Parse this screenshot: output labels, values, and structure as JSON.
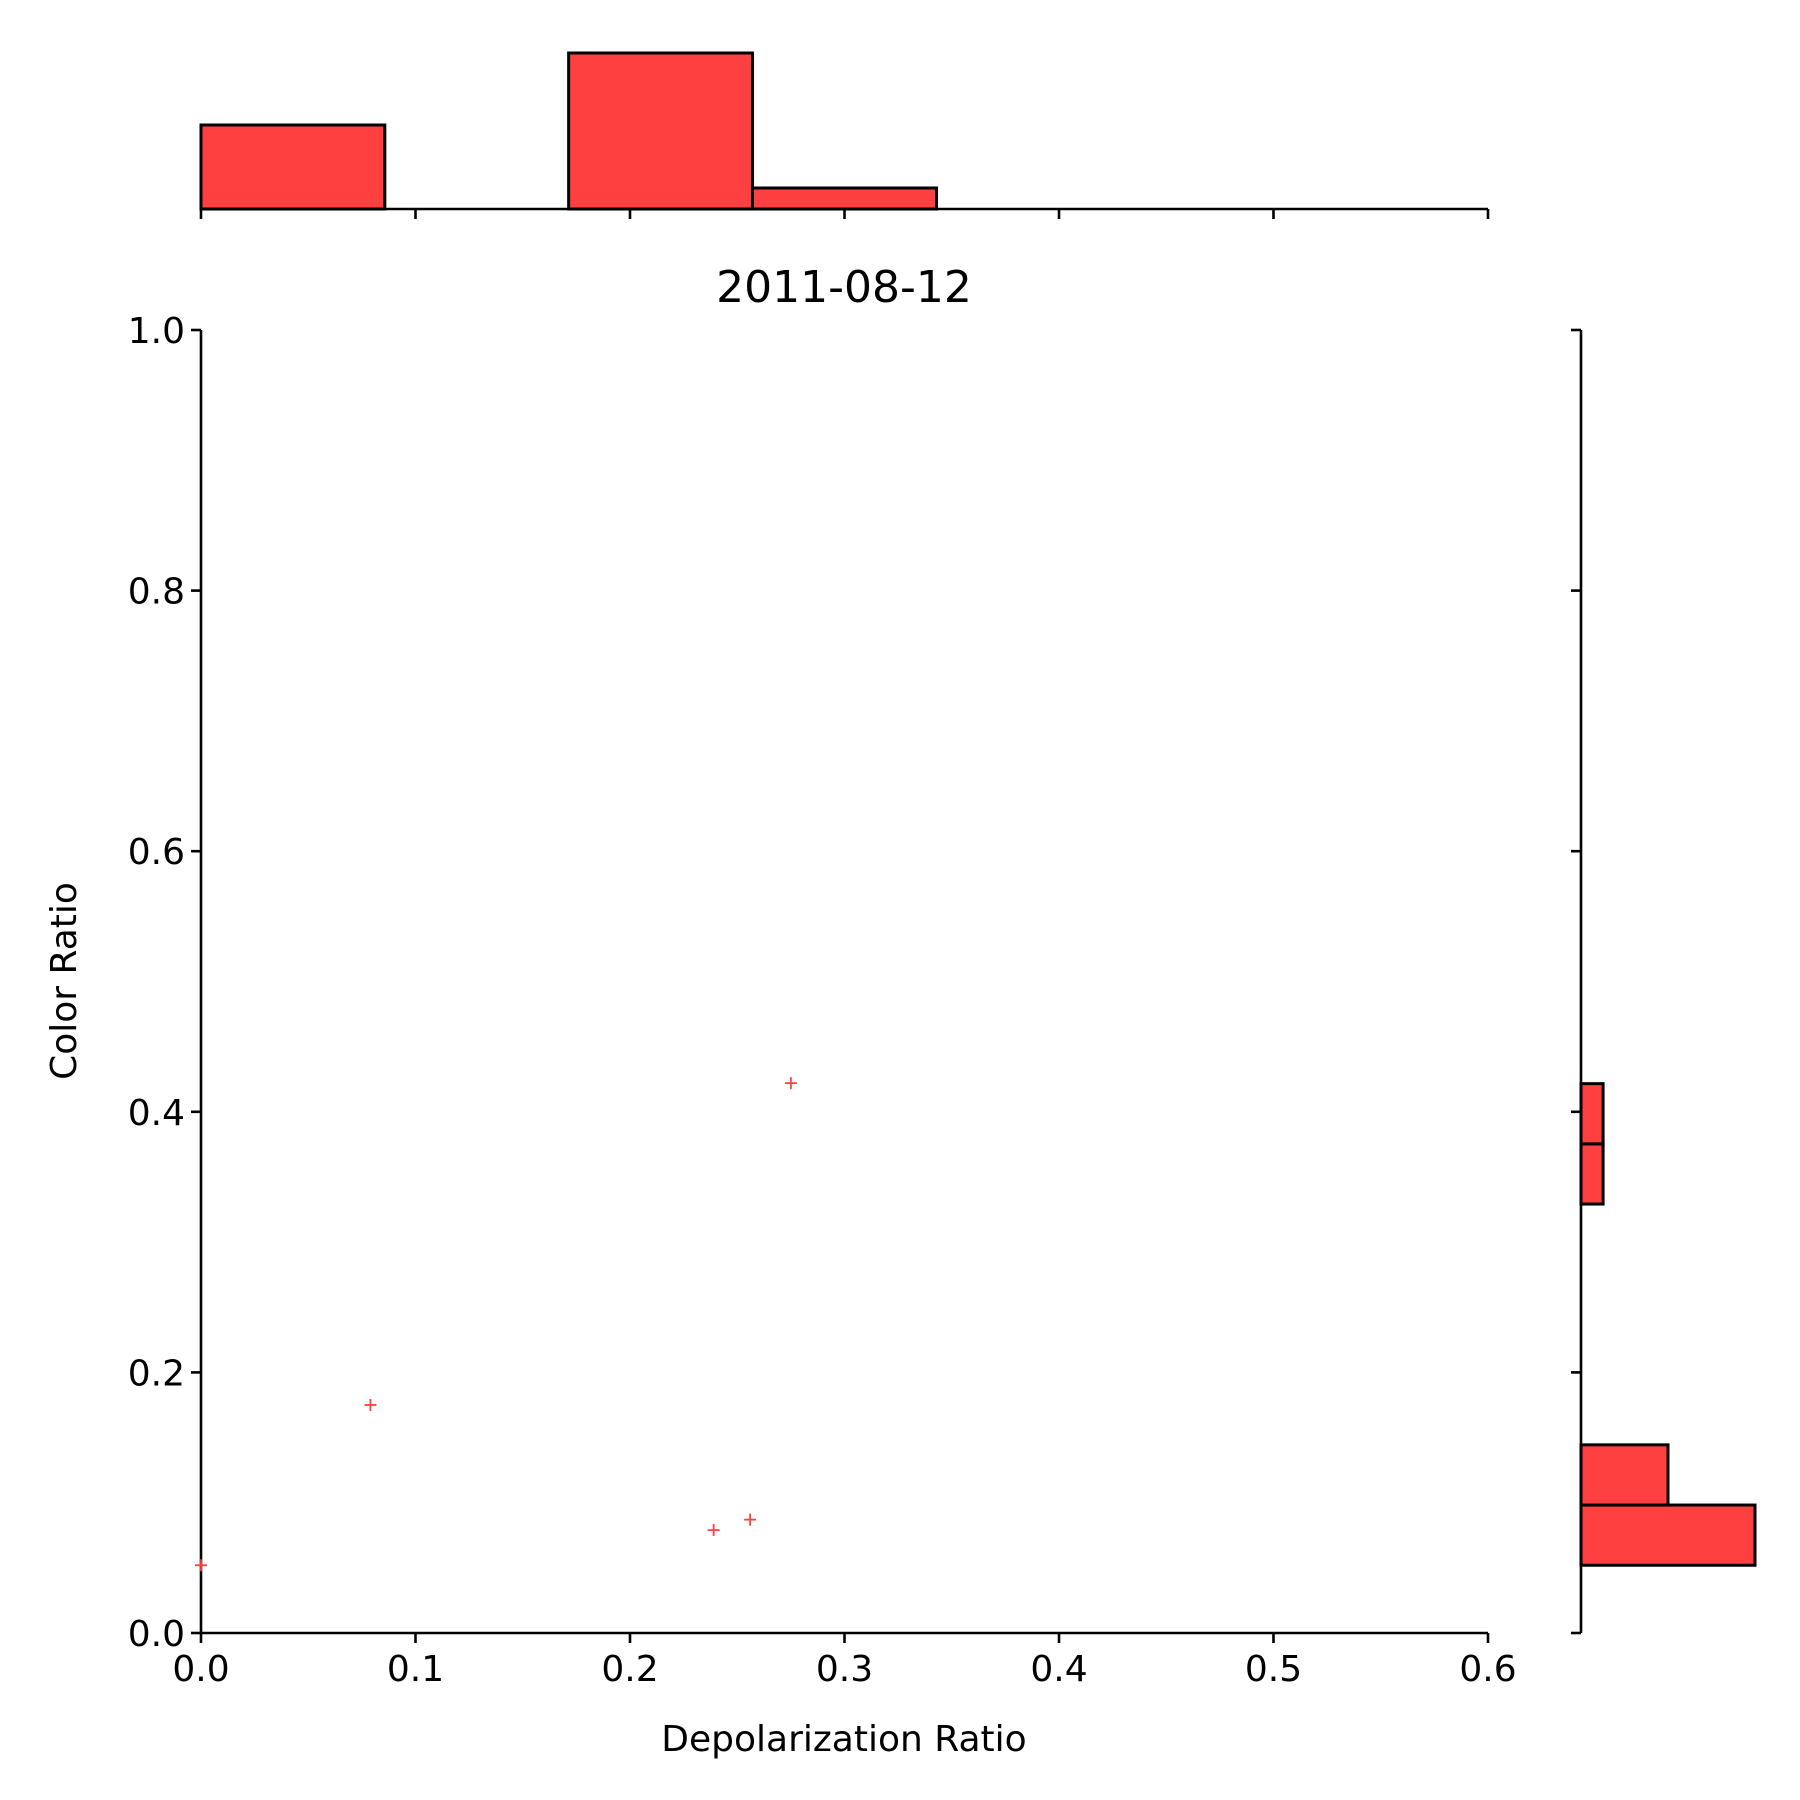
{
  "chart_data": {
    "type": "scatter",
    "title": "2011-08-12",
    "xlabel": "Depolarization Ratio",
    "ylabel": "Color Ratio",
    "xlim": [
      0.0,
      0.6
    ],
    "ylim": [
      0.0,
      1.0
    ],
    "xticks": [
      "0.0",
      "0.1",
      "0.2",
      "0.3",
      "0.4",
      "0.5",
      "0.6"
    ],
    "yticks": [
      "0.0",
      "0.2",
      "0.4",
      "0.6",
      "0.8",
      "1.0"
    ],
    "grid": false,
    "marker": "+",
    "color": "#ff4040",
    "points": [
      {
        "x": 0.0,
        "y": 0.052
      },
      {
        "x": 0.079,
        "y": 0.175
      },
      {
        "x": 0.239,
        "y": 0.079
      },
      {
        "x": 0.256,
        "y": 0.087
      },
      {
        "x": 0.275,
        "y": 0.422
      }
    ],
    "x_marginal_histogram": {
      "bin_edges": [
        0.0,
        0.0857,
        0.1714,
        0.2571,
        0.3429,
        0.4286,
        0.5143,
        0.6
      ],
      "counts": [
        1.4,
        0.0,
        2.6,
        0.35,
        0.0,
        0.0,
        0.0
      ]
    },
    "y_marginal_histogram": {
      "bin_edges": [
        0.052,
        0.0982,
        0.1444,
        0.1906,
        0.2368,
        0.283,
        0.3292,
        0.3754,
        0.4216
      ],
      "counts": [
        2.6,
        1.3,
        0.0,
        0.0,
        0.0,
        0.0,
        0.33,
        0.33
      ]
    }
  }
}
